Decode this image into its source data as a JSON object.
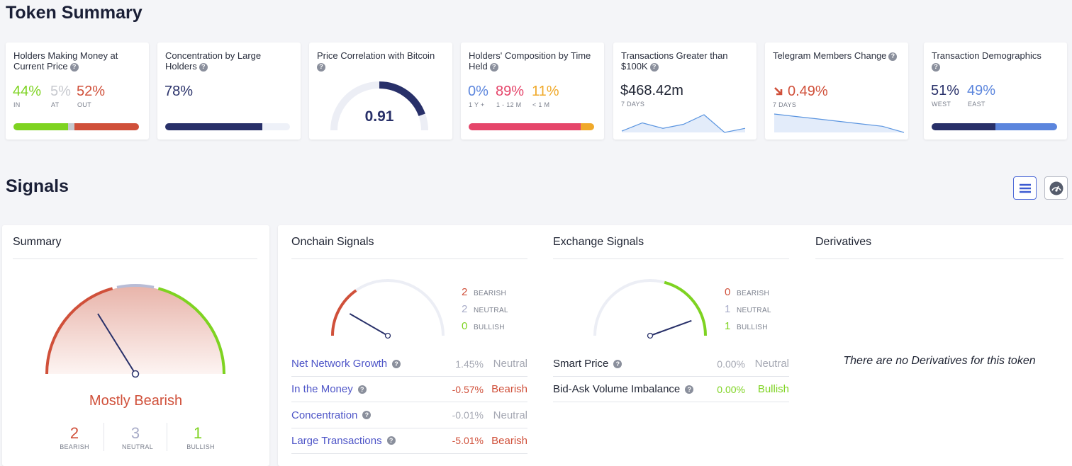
{
  "token_summary": {
    "title": "Token Summary",
    "cards": {
      "holders_money": {
        "label": "Holders Making Money at Current Price",
        "in_value": "44%",
        "in_label": "IN",
        "at_value": "5%",
        "at_label": "AT",
        "out_value": "52%",
        "out_label": "OUT",
        "bar": {
          "in": 0.44,
          "at": 0.05,
          "out": 0.52
        }
      },
      "concentration": {
        "label": "Concentration by Large Holders",
        "value": "78%",
        "bar_fill": 0.78
      },
      "correlation": {
        "label": "Price Correlation with Bitcoin",
        "value": "0.91",
        "gauge_fill": 0.91
      },
      "composition": {
        "label": "Holders' Composition by Time Held",
        "v1": "0%",
        "l1": "1 Y +",
        "v2": "89%",
        "l2": "1 - 12 M",
        "v3": "11%",
        "l3": "< 1 M",
        "bar": {
          "long": 0.0,
          "mid": 0.89,
          "short": 0.11
        }
      },
      "transactions": {
        "label": "Transactions Greater than $100K",
        "value": "$468.42m",
        "period": "7 DAYS",
        "trend": [
          3,
          6,
          4,
          5.5,
          9,
          2.5,
          4
        ]
      },
      "telegram": {
        "label": "Telegram Members Change",
        "value": "0.49%",
        "period": "7 DAYS",
        "trend": [
          9,
          8,
          7,
          6,
          5,
          4,
          1.5
        ]
      },
      "demographics": {
        "label": "Transaction Demographics",
        "west_value": "51%",
        "west_label": "WEST",
        "east_value": "49%",
        "east_label": "EAST",
        "bar": {
          "west": 0.51,
          "east": 0.49
        }
      }
    }
  },
  "signals": {
    "title": "Signals",
    "list_view_icon": "list-icon",
    "gauge_view_icon": "gauge-icon",
    "summary": {
      "title": "Summary",
      "verdict": "Mostly Bearish",
      "bearish_count": "2",
      "bearish_label": "BEARISH",
      "neutral_count": "3",
      "neutral_label": "NEUTRAL",
      "bullish_count": "1",
      "bullish_label": "BULLISH"
    },
    "onchain": {
      "title": "Onchain Signals",
      "bearish": "2",
      "neutral": "2",
      "bullish": "0",
      "bearish_label": "BEARISH",
      "neutral_label": "NEUTRAL",
      "bullish_label": "BULLISH",
      "rows": [
        {
          "name": "Net Network Growth",
          "value": "1.45%",
          "status": "Neutral"
        },
        {
          "name": "In the Money",
          "value": "-0.57%",
          "status": "Bearish"
        },
        {
          "name": "Concentration",
          "value": "-0.01%",
          "status": "Neutral"
        },
        {
          "name": "Large Transactions",
          "value": "-5.01%",
          "status": "Bearish"
        }
      ]
    },
    "exchange": {
      "title": "Exchange Signals",
      "bearish": "0",
      "neutral": "1",
      "bullish": "1",
      "bearish_label": "BEARISH",
      "neutral_label": "NEUTRAL",
      "bullish_label": "BULLISH",
      "rows": [
        {
          "name": "Smart Price",
          "value": "0.00%",
          "status": "Neutral"
        },
        {
          "name": "Bid-Ask Volume Imbalance",
          "value": "0.00%",
          "status": "Bullish"
        }
      ]
    },
    "derivatives": {
      "title": "Derivatives",
      "empty_message": "There are no Derivatives for this token"
    }
  },
  "colors": {
    "green": "#7ed321",
    "red": "#d0503a",
    "gray": "#c7c9cf",
    "navy": "#283069",
    "pink": "#e5456a",
    "orange": "#f0a92a",
    "blue": "#5b85dd",
    "neutral": "#a8acc8"
  }
}
